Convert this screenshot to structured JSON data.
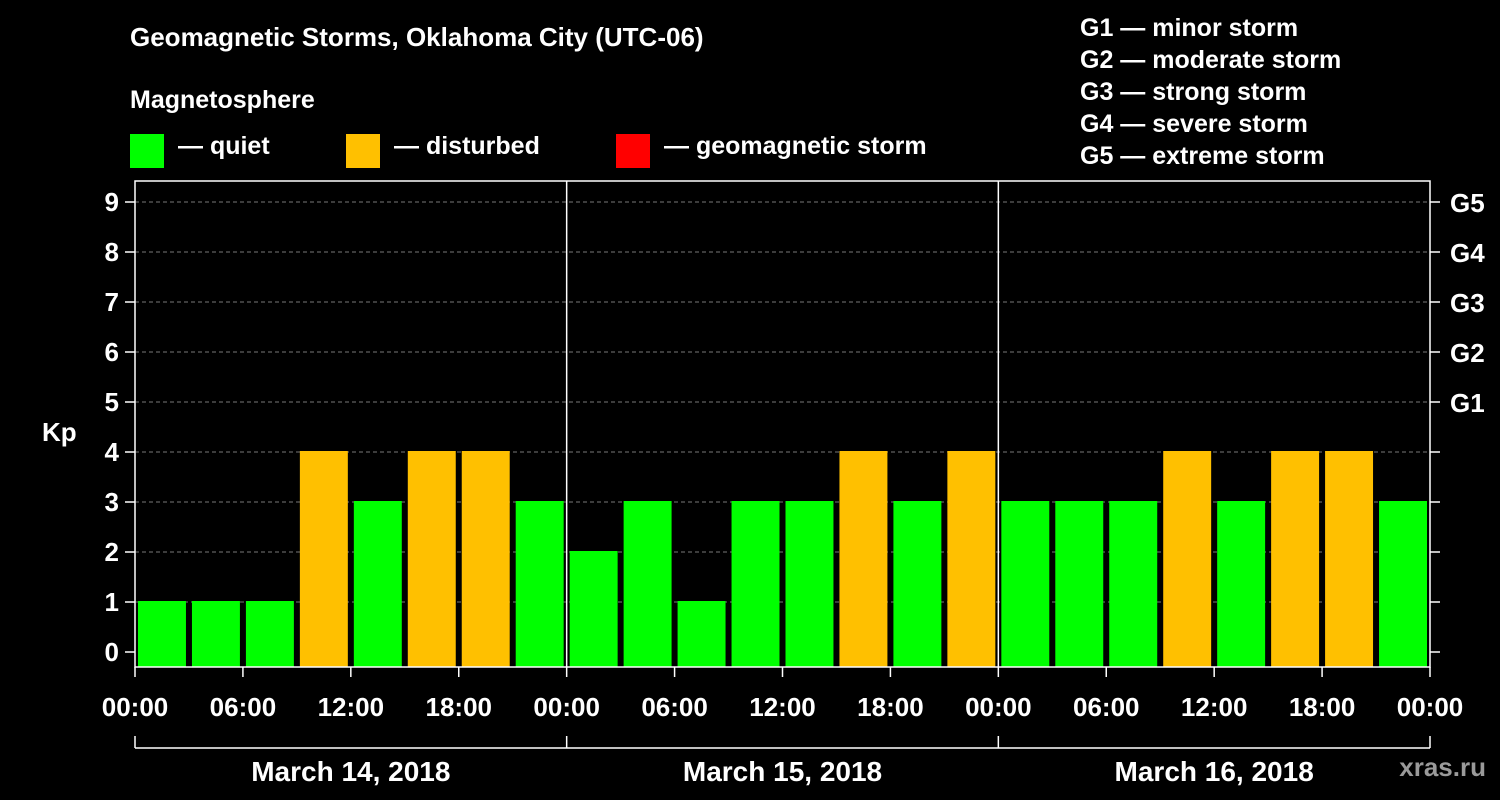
{
  "header": {
    "title": "Geomagnetic Storms, Oklahoma City (UTC-06)",
    "subtitle": "Magnetosphere"
  },
  "legend": [
    {
      "label": "— quiet",
      "color": "#00ff00"
    },
    {
      "label": "— disturbed",
      "color": "#ffc000"
    },
    {
      "label": "— geomagnetic storm",
      "color": "#ff0000"
    }
  ],
  "storm_scale": [
    "G1 — minor storm",
    "G2 — moderate storm",
    "G3 — strong storm",
    "G4 — severe storm",
    "G5 — extreme storm"
  ],
  "watermark": "xras.ru",
  "chart_data": {
    "type": "bar",
    "title": "Geomagnetic Storms, Oklahoma City (UTC-06)",
    "ylabel": "Kp",
    "ylim": [
      0,
      9
    ],
    "yticks": [
      "0",
      "1",
      "2",
      "3",
      "4",
      "5",
      "6",
      "7",
      "8",
      "9"
    ],
    "right_axis": [
      {
        "kp": 5,
        "label": "G1"
      },
      {
        "kp": 6,
        "label": "G2"
      },
      {
        "kp": 7,
        "label": "G3"
      },
      {
        "kp": 8,
        "label": "G4"
      },
      {
        "kp": 9,
        "label": "G5"
      }
    ],
    "xtick_labels": [
      "00:00",
      "06:00",
      "12:00",
      "18:00",
      "00:00",
      "06:00",
      "12:00",
      "18:00",
      "00:00",
      "06:00",
      "12:00",
      "18:00",
      "00:00"
    ],
    "days": [
      "March 14, 2018",
      "March 15, 2018",
      "March 16, 2018"
    ],
    "interval_hours": 3,
    "values": [
      1,
      1,
      1,
      4,
      3,
      4,
      4,
      3,
      2,
      3,
      1,
      3,
      3,
      4,
      3,
      4,
      3,
      3,
      3,
      4,
      3,
      4,
      4,
      3
    ],
    "colors": {
      "quiet": "#00ff00",
      "disturbed": "#ffc000",
      "storm": "#ff0000"
    },
    "grid": true
  }
}
